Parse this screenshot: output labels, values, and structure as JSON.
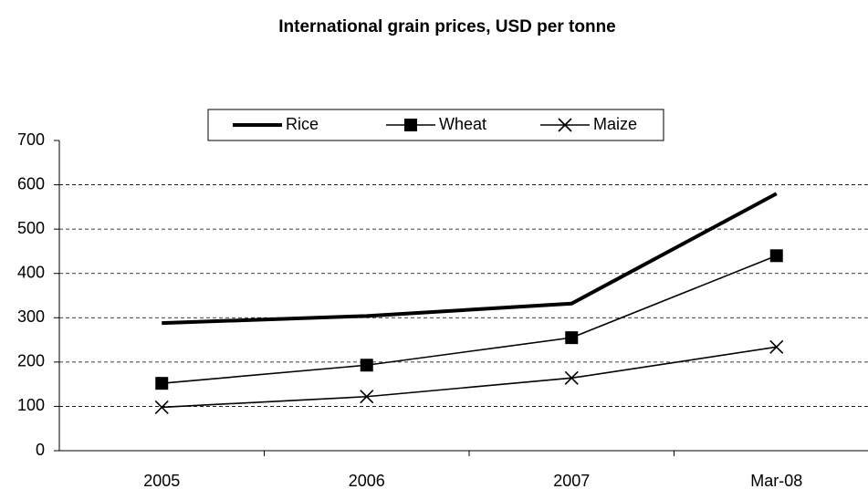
{
  "chart_data": {
    "type": "line",
    "title": "International grain prices, USD per tonne",
    "categories": [
      "2005",
      "2006",
      "2007",
      "Mar-08"
    ],
    "series": [
      {
        "name": "Rice",
        "color": "#000000",
        "marker": "none",
        "values": [
          288,
          304,
          332,
          580
        ]
      },
      {
        "name": "Wheat",
        "color": "#000000",
        "marker": "square",
        "values": [
          152,
          193,
          255,
          440
        ]
      },
      {
        "name": "Maize",
        "color": "#000000",
        "marker": "x",
        "values": [
          98,
          122,
          164,
          234
        ]
      }
    ],
    "ylim": [
      0,
      700
    ],
    "yticks": [
      0,
      100,
      200,
      300,
      400,
      500,
      600,
      700
    ],
    "grid": true,
    "legend": "top"
  }
}
